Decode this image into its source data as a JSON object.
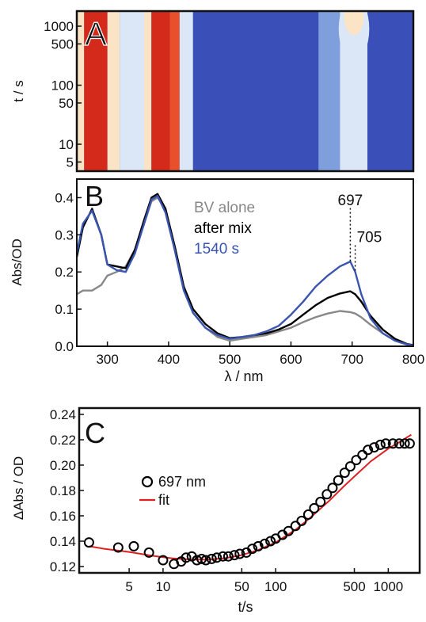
{
  "chart_data": [
    {
      "panel": "A",
      "type": "heatmap",
      "ylabel": "t / s",
      "yscale": "log",
      "ylim": [
        3.5,
        1800
      ],
      "xlim": [
        250,
        800
      ],
      "yticks": [
        5,
        10,
        50,
        100,
        500,
        1000
      ],
      "ytick_labels": [
        "5",
        "10",
        "50",
        "100",
        "500",
        "1000"
      ],
      "colormap": [
        "#3a4fb8",
        "#7f9fdc",
        "#dbe6f6",
        "#fbe3c6",
        "#e8502c",
        "#d42a1c"
      ],
      "bands": [
        {
          "x": [
            250,
            262
          ],
          "level": 3
        },
        {
          "x": [
            262,
            300
          ],
          "level": 5
        },
        {
          "x": [
            300,
            320
          ],
          "level": 3
        },
        {
          "x": [
            320,
            360
          ],
          "level": 2
        },
        {
          "x": [
            360,
            372
          ],
          "level": 3
        },
        {
          "x": [
            372,
            402
          ],
          "level": 5
        },
        {
          "x": [
            402,
            418
          ],
          "level": 4
        },
        {
          "x": [
            418,
            440
          ],
          "level": 2
        },
        {
          "x": [
            440,
            645
          ],
          "level": 0
        },
        {
          "x": [
            645,
            680
          ],
          "level": 1
        },
        {
          "x": [
            680,
            725
          ],
          "level": 2
        },
        {
          "x": [
            725,
            800
          ],
          "level": 0
        }
      ]
    },
    {
      "panel": "B",
      "type": "line",
      "xlabel": "λ / nm",
      "ylabel": "Abs/OD",
      "xlim": [
        250,
        800
      ],
      "ylim": [
        0,
        0.45
      ],
      "xticks": [
        300,
        400,
        500,
        600,
        700,
        800
      ],
      "yticks": [
        0.0,
        0.1,
        0.2,
        0.3,
        0.4
      ],
      "ytick_labels": [
        "0.0",
        "0.1",
        "0.2",
        "0.3",
        "0.4"
      ],
      "x": [
        250,
        260,
        275,
        290,
        300,
        315,
        330,
        345,
        360,
        372,
        382,
        395,
        410,
        425,
        440,
        460,
        480,
        500,
        520,
        540,
        560,
        580,
        600,
        620,
        640,
        660,
        680,
        697,
        705,
        715,
        730,
        750,
        770,
        790,
        800
      ],
      "series": [
        {
          "name": "BV alone",
          "color": "#888888",
          "values": [
            0.14,
            0.15,
            0.15,
            0.165,
            0.19,
            0.2,
            0.215,
            0.26,
            0.33,
            0.39,
            0.4,
            0.37,
            0.26,
            0.15,
            0.09,
            0.05,
            0.025,
            0.015,
            0.02,
            0.025,
            0.03,
            0.04,
            0.05,
            0.065,
            0.078,
            0.088,
            0.095,
            0.092,
            0.088,
            0.078,
            0.058,
            0.035,
            0.015,
            0.004,
            0.002
          ]
        },
        {
          "name": "after mix",
          "color": "#000000",
          "values": [
            0.24,
            0.32,
            0.37,
            0.3,
            0.22,
            0.215,
            0.21,
            0.26,
            0.34,
            0.4,
            0.41,
            0.37,
            0.27,
            0.16,
            0.1,
            0.06,
            0.035,
            0.022,
            0.025,
            0.03,
            0.035,
            0.045,
            0.06,
            0.085,
            0.11,
            0.13,
            0.142,
            0.148,
            0.14,
            0.12,
            0.082,
            0.045,
            0.02,
            0.006,
            0.003
          ]
        },
        {
          "name": "1540 s",
          "color": "#3a55b0",
          "values": [
            0.25,
            0.33,
            0.365,
            0.3,
            0.22,
            0.205,
            0.2,
            0.25,
            0.33,
            0.395,
            0.405,
            0.36,
            0.26,
            0.15,
            0.09,
            0.05,
            0.03,
            0.02,
            0.025,
            0.03,
            0.04,
            0.055,
            0.085,
            0.12,
            0.16,
            0.19,
            0.215,
            0.228,
            0.2,
            0.14,
            0.075,
            0.035,
            0.015,
            0.005,
            0.002
          ]
        }
      ],
      "annotations": [
        {
          "text": "697",
          "x": 697
        },
        {
          "text": "705",
          "x": 705
        }
      ]
    },
    {
      "panel": "C",
      "type": "scatter",
      "xlabel": "t/s",
      "ylabel": "ΔAbs / OD",
      "xscale": "log",
      "xlim": [
        1.8,
        1900
      ],
      "ylim": [
        0.115,
        0.245
      ],
      "xticks": [
        5,
        10,
        50,
        100,
        500,
        1000
      ],
      "xtick_labels": [
        "5",
        "10",
        "50",
        "100",
        "500",
        "1000"
      ],
      "yticks": [
        0.12,
        0.14,
        0.16,
        0.18,
        0.2,
        0.22,
        0.24
      ],
      "ytick_labels": [
        "0.12",
        "0.14",
        "0.16",
        "0.18",
        "0.20",
        "0.22",
        "0.24"
      ],
      "series": [
        {
          "name": "697 nm",
          "marker": "circle-open",
          "color": "#000000",
          "x": [
            2.2,
            4,
            5.5,
            7.5,
            10,
            12.5,
            14.5,
            16,
            18,
            20,
            22,
            24,
            27,
            30,
            34,
            38,
            43,
            48,
            55,
            62,
            70,
            80,
            90,
            100,
            115,
            130,
            150,
            170,
            195,
            220,
            250,
            285,
            320,
            360,
            410,
            460,
            520,
            590,
            660,
            750,
            850,
            950,
            1100,
            1250,
            1400,
            1550
          ],
          "y": [
            0.139,
            0.135,
            0.136,
            0.131,
            0.125,
            0.122,
            0.124,
            0.127,
            0.128,
            0.125,
            0.126,
            0.125,
            0.126,
            0.127,
            0.128,
            0.128,
            0.129,
            0.13,
            0.131,
            0.134,
            0.136,
            0.138,
            0.14,
            0.142,
            0.145,
            0.148,
            0.152,
            0.156,
            0.161,
            0.166,
            0.171,
            0.177,
            0.182,
            0.188,
            0.194,
            0.199,
            0.204,
            0.208,
            0.212,
            0.214,
            0.216,
            0.217,
            0.217,
            0.217,
            0.217,
            0.217
          ]
        },
        {
          "name": "fit",
          "type": "line",
          "color": "#e02020",
          "x": [
            2.2,
            3,
            5,
            8,
            12,
            18,
            25,
            35,
            50,
            70,
            100,
            150,
            200,
            300,
            400,
            500,
            700,
            1000,
            1300,
            1600
          ],
          "y": [
            0.136,
            0.134,
            0.1315,
            0.1285,
            0.1265,
            0.1255,
            0.1255,
            0.1265,
            0.129,
            0.133,
            0.139,
            0.149,
            0.158,
            0.172,
            0.183,
            0.191,
            0.203,
            0.213,
            0.219,
            0.224
          ]
        }
      ]
    }
  ]
}
